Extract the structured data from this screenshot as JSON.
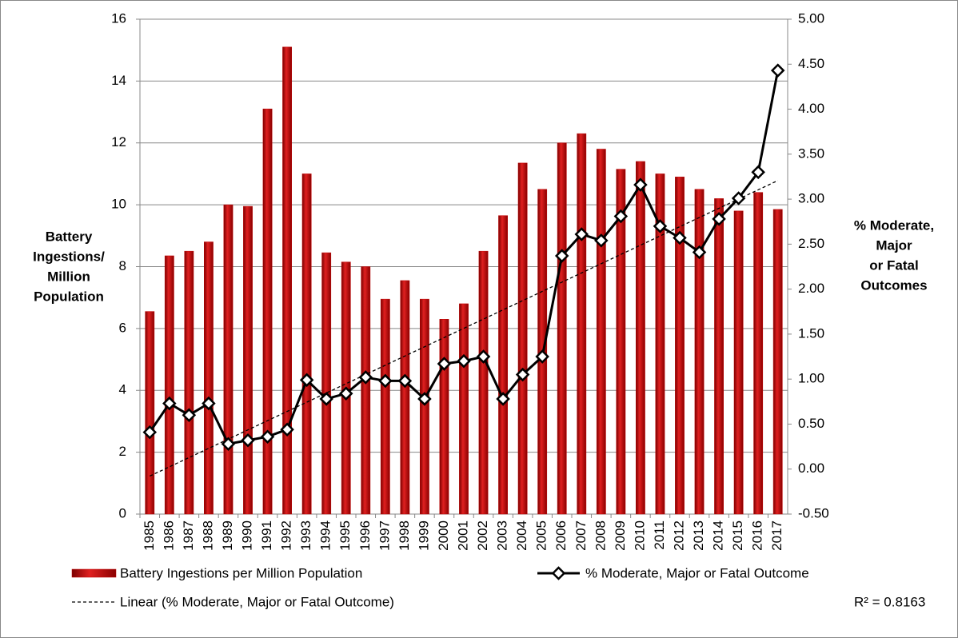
{
  "chart_data": {
    "type": "bar-line",
    "categories": [
      "1985",
      "1986",
      "1987",
      "1988",
      "1989",
      "1990",
      "1991",
      "1992",
      "1993",
      "1994",
      "1995",
      "1996",
      "1997",
      "1998",
      "1999",
      "2000",
      "2001",
      "2002",
      "2003",
      "2004",
      "2005",
      "2006",
      "2007",
      "2008",
      "2009",
      "2010",
      "2011",
      "2012",
      "2013",
      "2014",
      "2015",
      "2016",
      "2017"
    ],
    "series": [
      {
        "name": "Battery Ingestions per Million Population",
        "type": "bar",
        "color": "#c00000",
        "values": [
          6.55,
          8.35,
          8.5,
          8.8,
          10.0,
          9.95,
          13.1,
          15.1,
          11.0,
          8.45,
          8.15,
          8.0,
          6.95,
          7.55,
          6.95,
          6.3,
          6.8,
          8.5,
          9.65,
          11.35,
          10.5,
          12.0,
          12.3,
          11.8,
          11.15,
          11.4,
          11.0,
          10.9,
          10.5,
          10.2,
          9.8,
          10.4,
          9.85
        ]
      },
      {
        "name": "% Moderate, Major or Fatal Outcome",
        "type": "line",
        "axis": "y2",
        "color": "#000000",
        "values": [
          0.41,
          0.73,
          0.6,
          0.73,
          0.28,
          0.32,
          0.36,
          0.44,
          0.99,
          0.78,
          0.84,
          1.02,
          0.98,
          0.98,
          0.78,
          1.17,
          1.2,
          1.25,
          0.78,
          1.05,
          1.25,
          2.37,
          2.61,
          2.54,
          2.81,
          3.16,
          2.7,
          2.57,
          2.41,
          2.78,
          3.01,
          3.3,
          4.43
        ]
      }
    ],
    "trendline": {
      "name": "Linear (% Moderate, Major or Fatal Outcome)",
      "series": 1,
      "r2_label": "R² = 0.8163"
    },
    "y_label": [
      "Battery",
      "Ingestions/",
      "Million",
      "Population"
    ],
    "y2_label": [
      "% Moderate,",
      "Major",
      "or Fatal",
      "Outcomes"
    ],
    "ylim": [
      0,
      16
    ],
    "yticks": [
      0,
      2,
      4,
      6,
      8,
      10,
      12,
      14,
      16
    ],
    "y2lim": [
      -0.5,
      5
    ],
    "y2ticks": [
      {
        "value": -0.5,
        "label": "-0.50"
      },
      {
        "value": 0,
        "label": "0.00"
      },
      {
        "value": 0.5,
        "label": "0.50"
      },
      {
        "value": 1,
        "label": "1.00"
      },
      {
        "value": 1.5,
        "label": "1.50"
      },
      {
        "value": 2,
        "label": "2.00"
      },
      {
        "value": 2.5,
        "label": "2.50"
      },
      {
        "value": 3,
        "label": "3.00"
      },
      {
        "value": 3.5,
        "label": "3.50"
      },
      {
        "value": 4,
        "label": "4.00"
      },
      {
        "value": 4.5,
        "label": "4.50"
      },
      {
        "value": 5,
        "label": "5.00"
      }
    ],
    "grid": true
  }
}
